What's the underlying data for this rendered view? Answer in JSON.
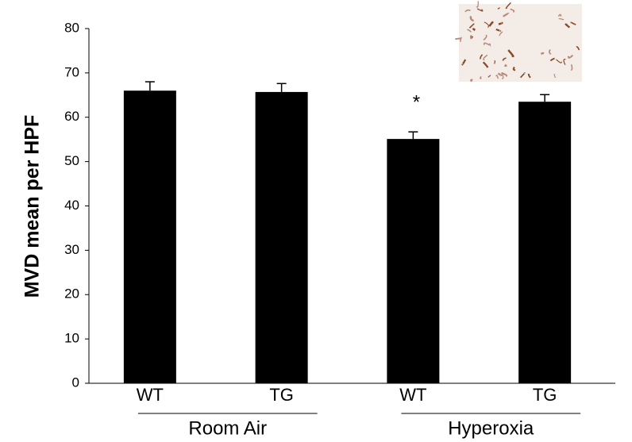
{
  "chart_data": {
    "type": "bar",
    "y_label": "MVD mean per HPF",
    "categories": [
      "WT",
      "TG",
      "WT",
      "TG"
    ],
    "groups": [
      "Room Air",
      "Hyperoxia"
    ],
    "values": [
      66,
      65.7,
      55.1,
      63.5
    ],
    "errors": [
      2,
      1.9,
      1.6,
      1.6
    ],
    "annotations": [
      {
        "category": 2,
        "text": "*"
      }
    ],
    "color": "#000000",
    "ylim": [
      0,
      80
    ],
    "yticks": [
      0,
      10,
      20,
      30,
      40,
      50,
      60,
      70,
      80
    ],
    "grid": false
  }
}
